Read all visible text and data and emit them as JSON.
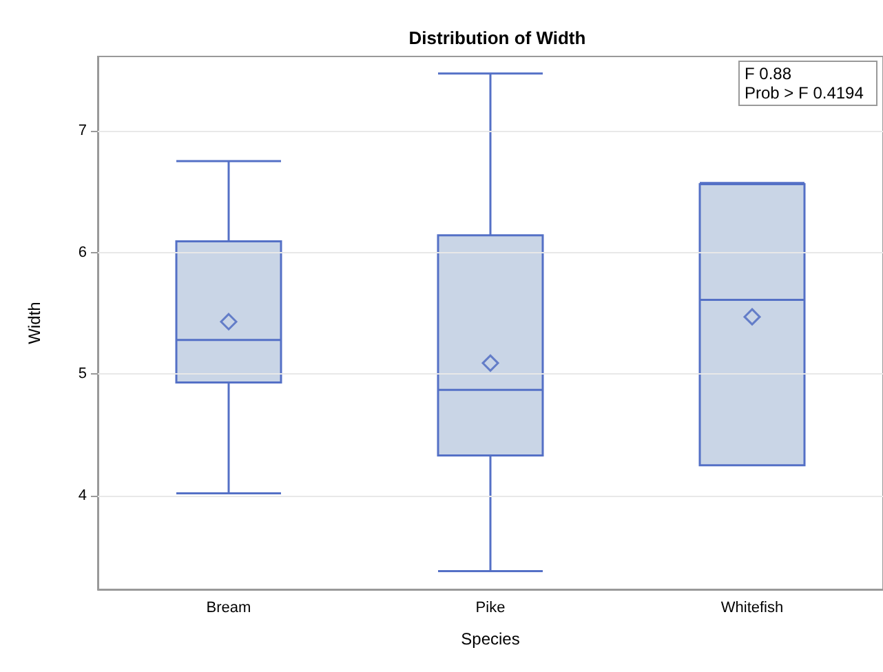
{
  "chart_data": {
    "type": "box",
    "title": "Distribution of Width",
    "xlabel": "Species",
    "ylabel": "Width",
    "categories": [
      "Bream",
      "Pike",
      "Whitefish"
    ],
    "boxes": [
      {
        "low": 4.02,
        "q1": 4.93,
        "median": 5.28,
        "q3": 6.09,
        "high": 6.75,
        "mean": 5.43
      },
      {
        "low": 3.38,
        "q1": 4.33,
        "median": 4.87,
        "q3": 6.14,
        "high": 7.47,
        "mean": 5.09
      },
      {
        "low": 4.25,
        "q1": 4.25,
        "median": 5.61,
        "q3": 6.56,
        "high": 6.57,
        "mean": 5.47
      }
    ],
    "color": "#c9d5e6",
    "ylim": [
      3.23,
      7.61
    ],
    "yticks": [
      4,
      5,
      6,
      7
    ],
    "grid": "y",
    "marker": "diamond",
    "annotations": [
      "F 0.88",
      "Prob > F 0.4194"
    ]
  }
}
